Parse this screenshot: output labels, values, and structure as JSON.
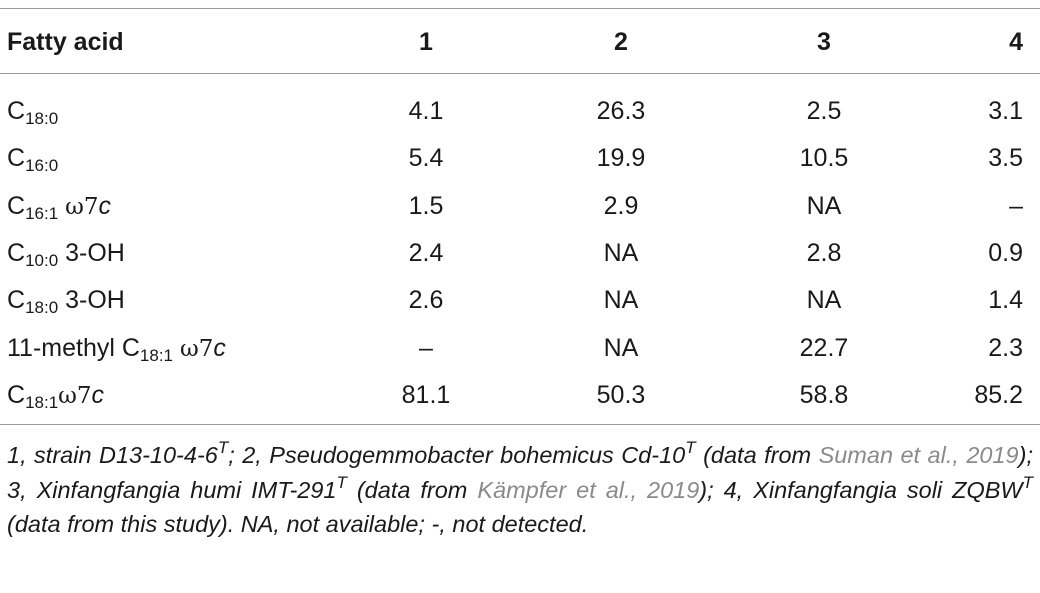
{
  "table": {
    "headers": [
      "Fatty acid",
      "1",
      "2",
      "3",
      "4"
    ],
    "rows": [
      {
        "base": "C",
        "sub": "18:0",
        "suffix": "",
        "omega": "",
        "italic": "",
        "values": [
          "4.1",
          "26.3",
          "2.5",
          "3.1"
        ]
      },
      {
        "base": "C",
        "sub": "16:0",
        "suffix": "",
        "omega": "",
        "italic": "",
        "values": [
          "5.4",
          "19.9",
          "10.5",
          "3.5"
        ]
      },
      {
        "base": "C",
        "sub": "16:1",
        "suffix": " ",
        "omega": "ω7",
        "italic": "c",
        "values": [
          "1.5",
          "2.9",
          "NA",
          "–"
        ]
      },
      {
        "base": "C",
        "sub": "10:0",
        "suffix": " 3-OH",
        "omega": "",
        "italic": "",
        "values": [
          "2.4",
          "NA",
          "2.8",
          "0.9"
        ]
      },
      {
        "base": "C",
        "sub": "18:0",
        "suffix": " 3-OH",
        "omega": "",
        "italic": "",
        "values": [
          "2.6",
          "NA",
          "NA",
          "1.4"
        ]
      },
      {
        "base": "11-methyl C",
        "sub": "18:1",
        "suffix": " ",
        "omega": "ω7",
        "italic": "c",
        "values": [
          "–",
          "NA",
          "22.7",
          "2.3"
        ]
      },
      {
        "base": "C",
        "sub": "18:1",
        "suffix": "",
        "omega": "ω7",
        "italic": "c",
        "values": [
          "81.1",
          "50.3",
          "58.8",
          "85.2"
        ]
      }
    ]
  },
  "footnote": {
    "p1": "1, strain D13-10-4-6",
    "sup1": "T",
    "p2": "; 2, Pseudogemmobacter bohemicus Cd-10",
    "sup2": "T",
    "p3": " (data from ",
    "link1": "Suman et al., 2019",
    "p4": "); 3, Xinfangfangia humi IMT-291",
    "sup3": "T",
    "p5": " (data from ",
    "link2": "Kämpfer et al., 2019",
    "p6": "); 4, Xinfangfangia soli ZQBW",
    "sup4": "T",
    "p7": " (data from this study). NA, not available; -, not detected."
  }
}
